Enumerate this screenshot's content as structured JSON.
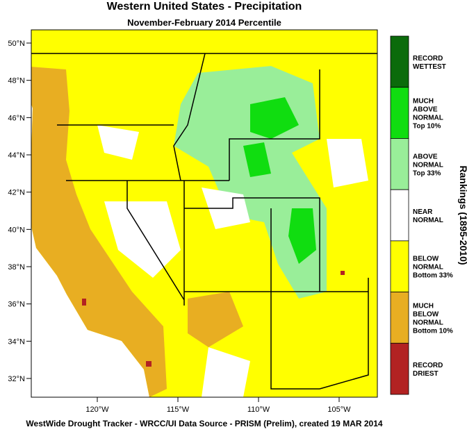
{
  "header": {
    "title": "Western United States - Precipitation",
    "subtitle": "November-February 2014 Percentile"
  },
  "map": {
    "lat_labels": [
      "50°N",
      "48°N",
      "46°N",
      "44°N",
      "42°N",
      "40°N",
      "38°N",
      "36°N",
      "34°N",
      "32°N"
    ],
    "lon_labels": [
      "120°W",
      "115°W",
      "110°W",
      "105°W"
    ]
  },
  "legend": {
    "title": "Rankings (1895-2010)",
    "items": [
      {
        "label": [
          "RECORD",
          "WETTEST"
        ],
        "color": "#0b6b0b"
      },
      {
        "label": [
          "MUCH",
          "ABOVE",
          "NORMAL",
          "Top 10%"
        ],
        "color": "#10dd10"
      },
      {
        "label": [
          "ABOVE",
          "NORMAL",
          "Top 33%"
        ],
        "color": "#99ee99"
      },
      {
        "label": [
          "NEAR",
          "NORMAL"
        ],
        "color": "#ffffff"
      },
      {
        "label": [
          "BELOW",
          "NORMAL",
          "Bottom 33%"
        ],
        "color": "#ffff00"
      },
      {
        "label": [
          "MUCH",
          "BELOW",
          "NORMAL",
          "Bottom 10%"
        ],
        "color": "#e8ae22"
      },
      {
        "label": [
          "RECORD",
          "DRIEST"
        ],
        "color": "#b22222"
      }
    ]
  },
  "footer": "WestWide Drought Tracker - WRCC/UI  Data Source - PRISM (Prelim), created 19 MAR 2014"
}
